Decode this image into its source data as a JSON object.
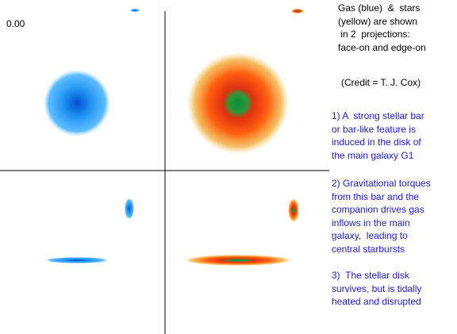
{
  "timestamp": "0.00",
  "intro": [
    "Gas (blue)  &  stars",
    "(yellow) are shown",
    " in 2  projections:",
    "face-on and edge-on"
  ],
  "credit": "(Credit = T. J. Cox)",
  "points": [
    {
      "lines": [
        "1) A  strong stellar bar",
        "or bar-like feature is",
        "induced in the disk of",
        "the main galaxy G1"
      ]
    },
    {
      "lines": [
        "2) Gravitational torques",
        "from this bar and the",
        "companion drives gas",
        "inflows in the main",
        "galaxy,  leading to",
        "central starbursts"
      ]
    },
    {
      "lines": [
        "3)  The stellar disk",
        "survives, but is tidally",
        "heated and disrupted"
      ]
    }
  ]
}
